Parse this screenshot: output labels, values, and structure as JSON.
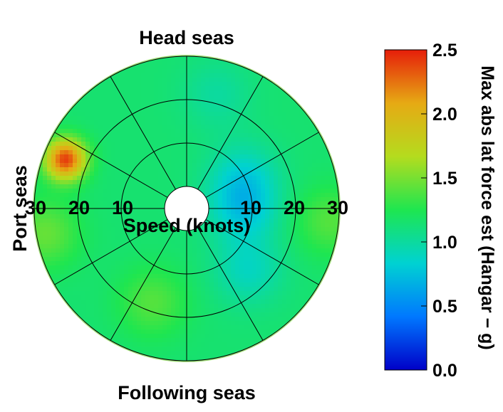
{
  "chart_data": {
    "type": "heatmap",
    "subtype": "polar-contour",
    "direction_labels": {
      "top": "Head seas",
      "bottom": "Following seas",
      "left": "Port seas"
    },
    "radial_axis": {
      "label": "Speed (knots)",
      "ticks": [
        10,
        20,
        30
      ],
      "range": [
        0,
        30
      ],
      "tick_labels_left": [
        "30",
        "20",
        "10"
      ],
      "tick_labels_right": [
        "10",
        "20",
        "30"
      ]
    },
    "colorbar": {
      "label": "Max abs lat force est (Hangar − g)",
      "range": [
        0.0,
        2.5
      ],
      "ticks": [
        "0.0",
        "0.5",
        "1.0",
        "1.5",
        "2.0",
        "2.5"
      ],
      "colormap": [
        "#0000c8",
        "#0078ff",
        "#00d2d2",
        "#1ee650",
        "#b4dc1e",
        "#e6aa14",
        "#e61e0a"
      ]
    },
    "field": {
      "base_value": 1.15,
      "features": [
        {
          "heading_deg": 292,
          "speed_kn": 25,
          "value": 2.4
        },
        {
          "heading_deg": 90,
          "speed_kn": 8,
          "value": 0.8
        },
        {
          "heading_deg": 60,
          "speed_kn": 10,
          "value": 0.9
        },
        {
          "heading_deg": 135,
          "speed_kn": 15,
          "value": 0.9
        },
        {
          "heading_deg": 200,
          "speed_kn": 18,
          "value": 1.4
        },
        {
          "heading_deg": 260,
          "speed_kn": 28,
          "value": 1.45
        },
        {
          "heading_deg": 95,
          "speed_kn": 28,
          "value": 1.4
        },
        {
          "heading_deg": 15,
          "speed_kn": 22,
          "value": 1.0
        }
      ]
    },
    "grid": true,
    "sector_lines_every_deg": 30
  }
}
